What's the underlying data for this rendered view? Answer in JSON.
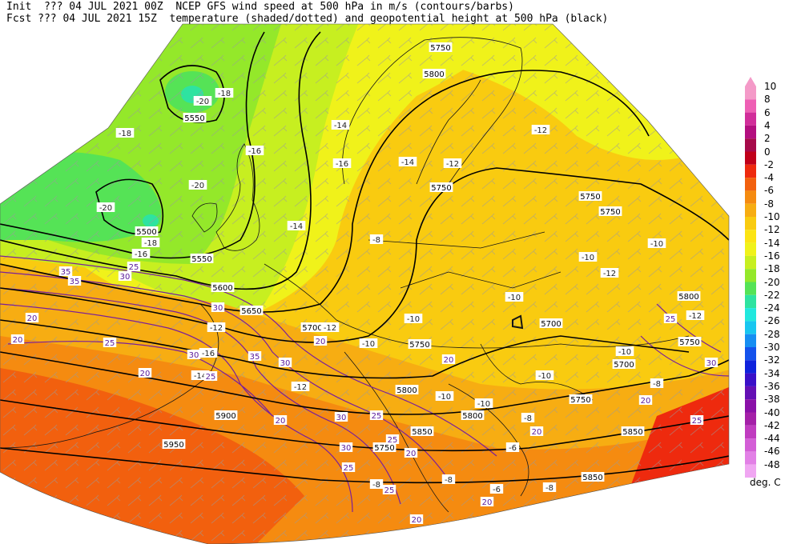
{
  "header": {
    "line1": "Init  ??? 04 JUL 2021 00Z  NCEP GFS wind speed at 500 hPa in m/s (contours/barbs)",
    "line2": "Fcst ??? 04 JUL 2021 15Z  temperature (shaded/dotted) and geopotential height at 500 hPa (black)"
  },
  "legend": {
    "units": "deg. C",
    "levels": [
      {
        "label": "10",
        "color": "#f49ac8"
      },
      {
        "label": "8",
        "color": "#ee5fb4"
      },
      {
        "label": "6",
        "color": "#d12e9a"
      },
      {
        "label": "4",
        "color": "#b30f7f"
      },
      {
        "label": "2",
        "color": "#a60a4a"
      },
      {
        "label": "0",
        "color": "#c0001a"
      },
      {
        "label": "-2",
        "color": "#ee2a0e"
      },
      {
        "label": "-4",
        "color": "#f2600e"
      },
      {
        "label": "-6",
        "color": "#f58b10"
      },
      {
        "label": "-8",
        "color": "#f7ad12"
      },
      {
        "label": "-10",
        "color": "#f9cb10"
      },
      {
        "label": "-12",
        "color": "#fce413"
      },
      {
        "label": "-14",
        "color": "#f0f21a"
      },
      {
        "label": "-16",
        "color": "#c7ef20"
      },
      {
        "label": "-18",
        "color": "#94e82a"
      },
      {
        "label": "-20",
        "color": "#55e356"
      },
      {
        "label": "-22",
        "color": "#2ee3a0"
      },
      {
        "label": "-24",
        "color": "#21e8de"
      },
      {
        "label": "-26",
        "color": "#18c6f0"
      },
      {
        "label": "-28",
        "color": "#168ef2"
      },
      {
        "label": "-30",
        "color": "#1452ec"
      },
      {
        "label": "-32",
        "color": "#0f22dc"
      },
      {
        "label": "-34",
        "color": "#3a10c8"
      },
      {
        "label": "-36",
        "color": "#6410b4"
      },
      {
        "label": "-38",
        "color": "#8a10a8"
      },
      {
        "label": "-40",
        "color": "#a420a8"
      },
      {
        "label": "-42",
        "color": "#c03cc0"
      },
      {
        "label": "-44",
        "color": "#d35ed6"
      },
      {
        "label": "-46",
        "color": "#e280e6"
      },
      {
        "label": "-48",
        "color": "#f0a6f2"
      }
    ]
  },
  "map": {
    "height_labels": [
      "5550",
      "5500",
      "5550",
      "5600",
      "5650",
      "5700",
      "5750",
      "5800",
      "5750",
      "5750",
      "5750",
      "5700",
      "5750",
      "5800",
      "5850",
      "5900",
      "5950",
      "5850",
      "5800",
      "5750",
      "5700",
      "5750",
      "5800",
      "5750",
      "5850"
    ],
    "temperature_labels": [
      "-20",
      "-18",
      "-18",
      "-16",
      "-20",
      "-20",
      "-18",
      "-16",
      "-14",
      "-16",
      "-14",
      "-12",
      "-14",
      "-12",
      "-10",
      "-10",
      "-12",
      "-10",
      "-10",
      "-12",
      "-10",
      "-10",
      "-12",
      "-8",
      "-8",
      "-10",
      "-12",
      "-10",
      "-8",
      "-6",
      "-8",
      "-10",
      "-8",
      "-6",
      "-8",
      "-12",
      "-16",
      "-14"
    ],
    "wind_labels": [
      "25",
      "30",
      "35",
      "20",
      "25",
      "20",
      "30",
      "25",
      "30",
      "35",
      "20",
      "30",
      "25",
      "20",
      "25",
      "30",
      "25",
      "20",
      "20",
      "25",
      "30",
      "35",
      "20",
      "30",
      "20",
      "25",
      "20",
      "20",
      "25",
      "20"
    ]
  }
}
